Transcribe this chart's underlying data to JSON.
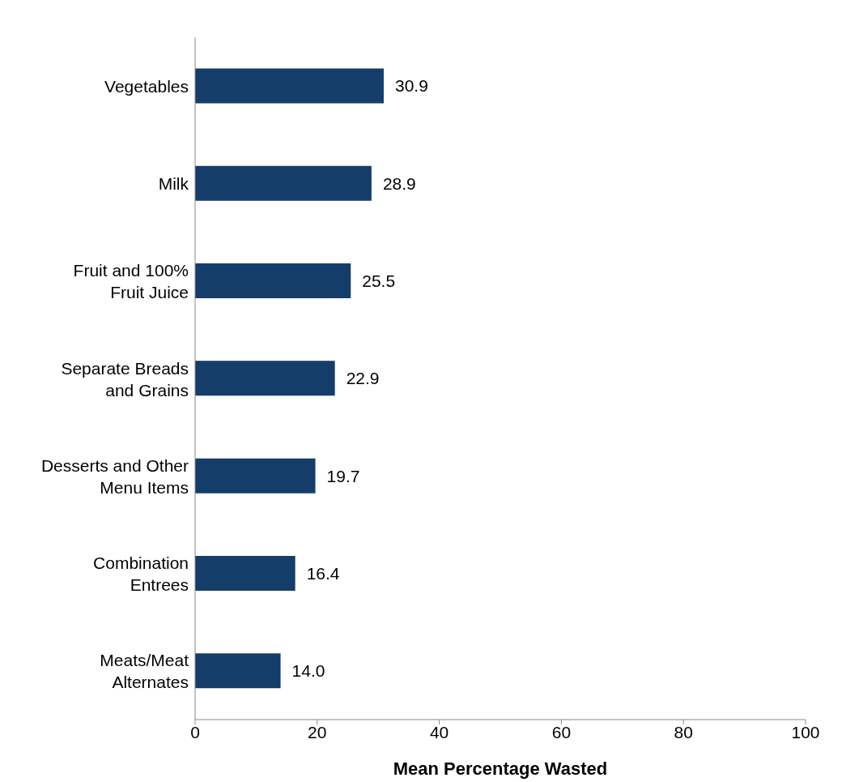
{
  "chart_data": {
    "type": "bar",
    "orientation": "horizontal",
    "categories": [
      "Vegetables",
      "Milk",
      "Fruit and 100% Fruit Juice",
      "Separate Breads and Grains",
      "Desserts and Other Menu Items",
      "Combination Entrees",
      "Meats/Meat Alternates"
    ],
    "values": [
      30.9,
      28.9,
      25.5,
      22.9,
      19.7,
      16.4,
      14.0
    ],
    "value_labels": [
      "30.9",
      "28.9",
      "25.5",
      "22.9",
      "19.7",
      "16.4",
      "14.0"
    ],
    "color": "#153d69",
    "xlabel": "Mean Percentage Wasted",
    "xlim": [
      0,
      100
    ],
    "xticks": [
      0,
      20,
      40,
      60,
      80,
      100
    ],
    "grid": false,
    "legend": false
  }
}
